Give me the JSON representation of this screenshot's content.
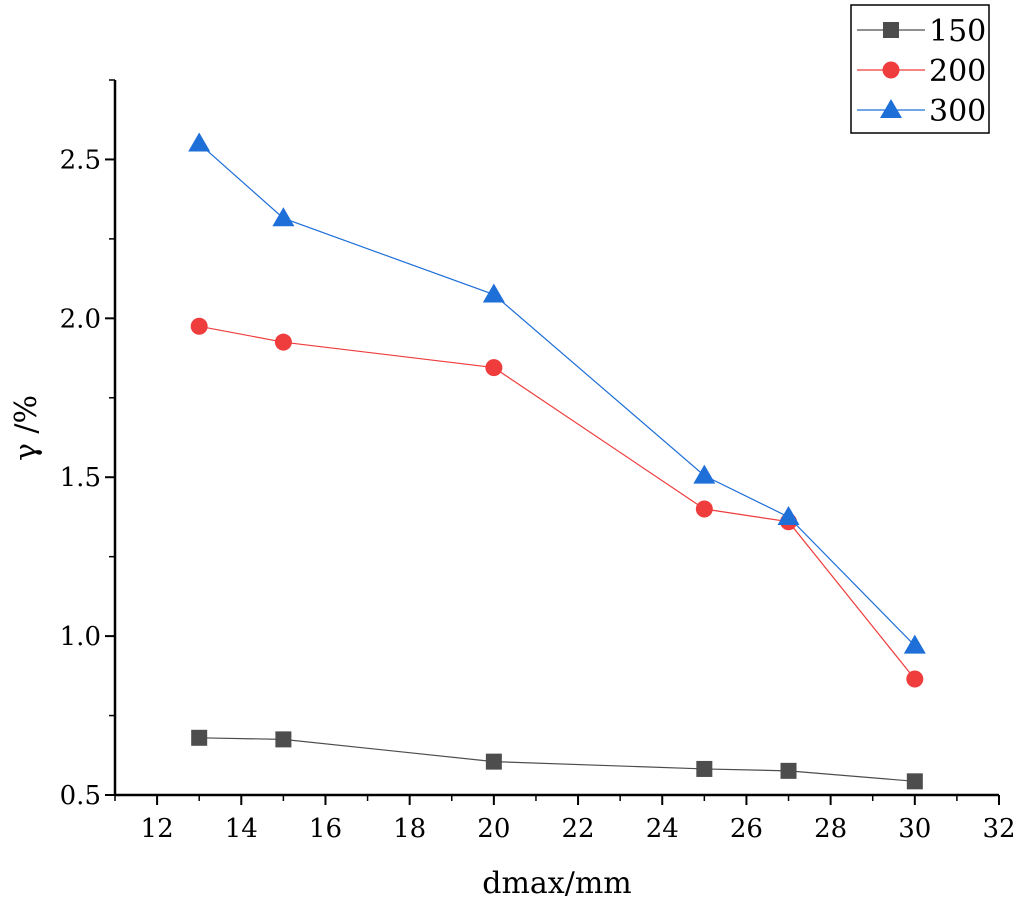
{
  "chart_data": {
    "type": "line",
    "title": "",
    "xlabel": "dmax/mm",
    "ylabel": "γ /%",
    "xlim": [
      11,
      32
    ],
    "ylim": [
      0.5,
      2.75
    ],
    "x_ticks": [
      12,
      14,
      16,
      18,
      20,
      22,
      24,
      26,
      28,
      30,
      32
    ],
    "y_ticks": [
      0.5,
      1.0,
      1.5,
      2.0,
      2.5
    ],
    "x_tick_labels": [
      "12",
      "14",
      "16",
      "18",
      "20",
      "22",
      "24",
      "26",
      "28",
      "30",
      "32"
    ],
    "y_tick_labels": [
      "0.5",
      "1.0",
      "1.5",
      "2.0",
      "2.5"
    ],
    "grid": false,
    "legend_position": "top-right",
    "x": [
      13,
      15,
      20,
      25,
      27,
      30
    ],
    "series": [
      {
        "name": "150",
        "marker": "square",
        "color": "#4d4d4d",
        "values": [
          0.68,
          0.675,
          0.605,
          0.582,
          0.576,
          0.543
        ]
      },
      {
        "name": "200",
        "marker": "circle",
        "color": "#ef3c3c",
        "values": [
          1.975,
          1.925,
          1.845,
          1.4,
          1.36,
          0.865
        ]
      },
      {
        "name": "300",
        "marker": "triangle",
        "color": "#1f6fd8",
        "values": [
          2.55,
          2.315,
          2.075,
          1.505,
          1.375,
          0.97
        ]
      }
    ]
  }
}
